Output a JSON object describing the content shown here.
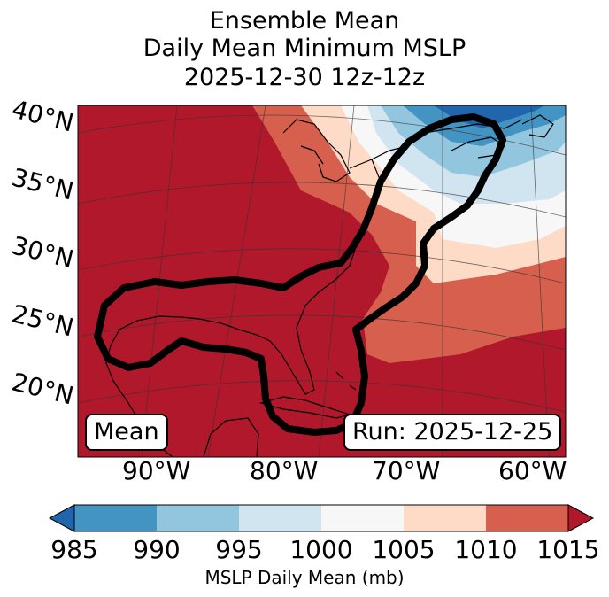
{
  "title": {
    "line1": "Ensemble Mean",
    "line2": "Daily Mean Minimum MSLP",
    "line3": "2025-12-30 12z-12z"
  },
  "map": {
    "lat_labels": [
      "40°N",
      "35°N",
      "30°N",
      "25°N",
      "20°N"
    ],
    "lon_labels": [
      "90°W",
      "80°W",
      "70°W",
      "60°W"
    ],
    "mean_box": "Mean",
    "run_box": "Run: 2025-12-25",
    "contour_note": "black outline of ensemble low-pressure track region"
  },
  "colorbar": {
    "label": "MSLP Daily Mean (mb)",
    "ticks": [
      "985",
      "990",
      "995",
      "1000",
      "1005",
      "1010",
      "1015"
    ],
    "bins": [
      {
        "range": "<985",
        "color": "#2166ac"
      },
      {
        "range": "985-990",
        "color": "#4393c3"
      },
      {
        "range": "990-995",
        "color": "#92c5de"
      },
      {
        "range": "995-1000",
        "color": "#d1e5f0"
      },
      {
        "range": "1000-1005",
        "color": "#f7f7f7"
      },
      {
        "range": "1005-1010",
        "color": "#fddbc7"
      },
      {
        "range": "1010-1015",
        "color": "#d6604d"
      },
      {
        "range": ">1015",
        "color": "#b2182b"
      }
    ]
  }
}
